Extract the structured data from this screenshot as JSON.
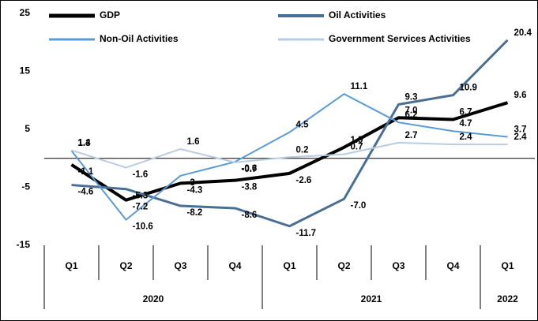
{
  "chart_data": {
    "type": "line",
    "categories": [
      "Q1",
      "Q2",
      "Q3",
      "Q4",
      "Q1",
      "Q2",
      "Q3",
      "Q4",
      "Q1"
    ],
    "groups": [
      {
        "label": "2020",
        "count": 4
      },
      {
        "label": "2021",
        "count": 4
      },
      {
        "label": "2022",
        "count": 1
      }
    ],
    "series": [
      {
        "name": "GDP",
        "color": "#000000",
        "width": 4,
        "values": [
          -1.1,
          -7.2,
          -4.3,
          -3.8,
          -2.6,
          1.9,
          7.0,
          6.7,
          9.6
        ],
        "value_labels": [
          "-1.1",
          "-7.2",
          "-4.3",
          "-3.8",
          "-2.6",
          "1.9",
          "7.0",
          "6.7",
          "9.6"
        ]
      },
      {
        "name": "Oil Activities",
        "color": "#4a6f96",
        "width": 3,
        "values": [
          -4.6,
          -5.3,
          -8.2,
          -8.6,
          -11.7,
          -7.0,
          9.3,
          10.9,
          20.4
        ],
        "value_labels": [
          "-4.6",
          "-5.3",
          "-8.2",
          "-8.6",
          "-11.7",
          "-7.0",
          "9.3",
          "10.9",
          "20.4"
        ]
      },
      {
        "name": "Non-Oil Activities",
        "color": "#5b9bd5",
        "width": 2,
        "values": [
          1.3,
          -10.6,
          -3.0,
          -0.6,
          4.5,
          11.1,
          6.2,
          4.7,
          3.7
        ]
      },
      {
        "name": "Government Services Activities",
        "color": "#b8cce4",
        "width": 2,
        "values": [
          1.4,
          -1.6,
          1.6,
          -0.7,
          0.2,
          0.7,
          2.7,
          2.4,
          2.4
        ]
      }
    ],
    "ylim": [
      -15,
      25
    ],
    "yticks": [
      25,
      15,
      5,
      -5,
      -15
    ],
    "grid": false
  }
}
